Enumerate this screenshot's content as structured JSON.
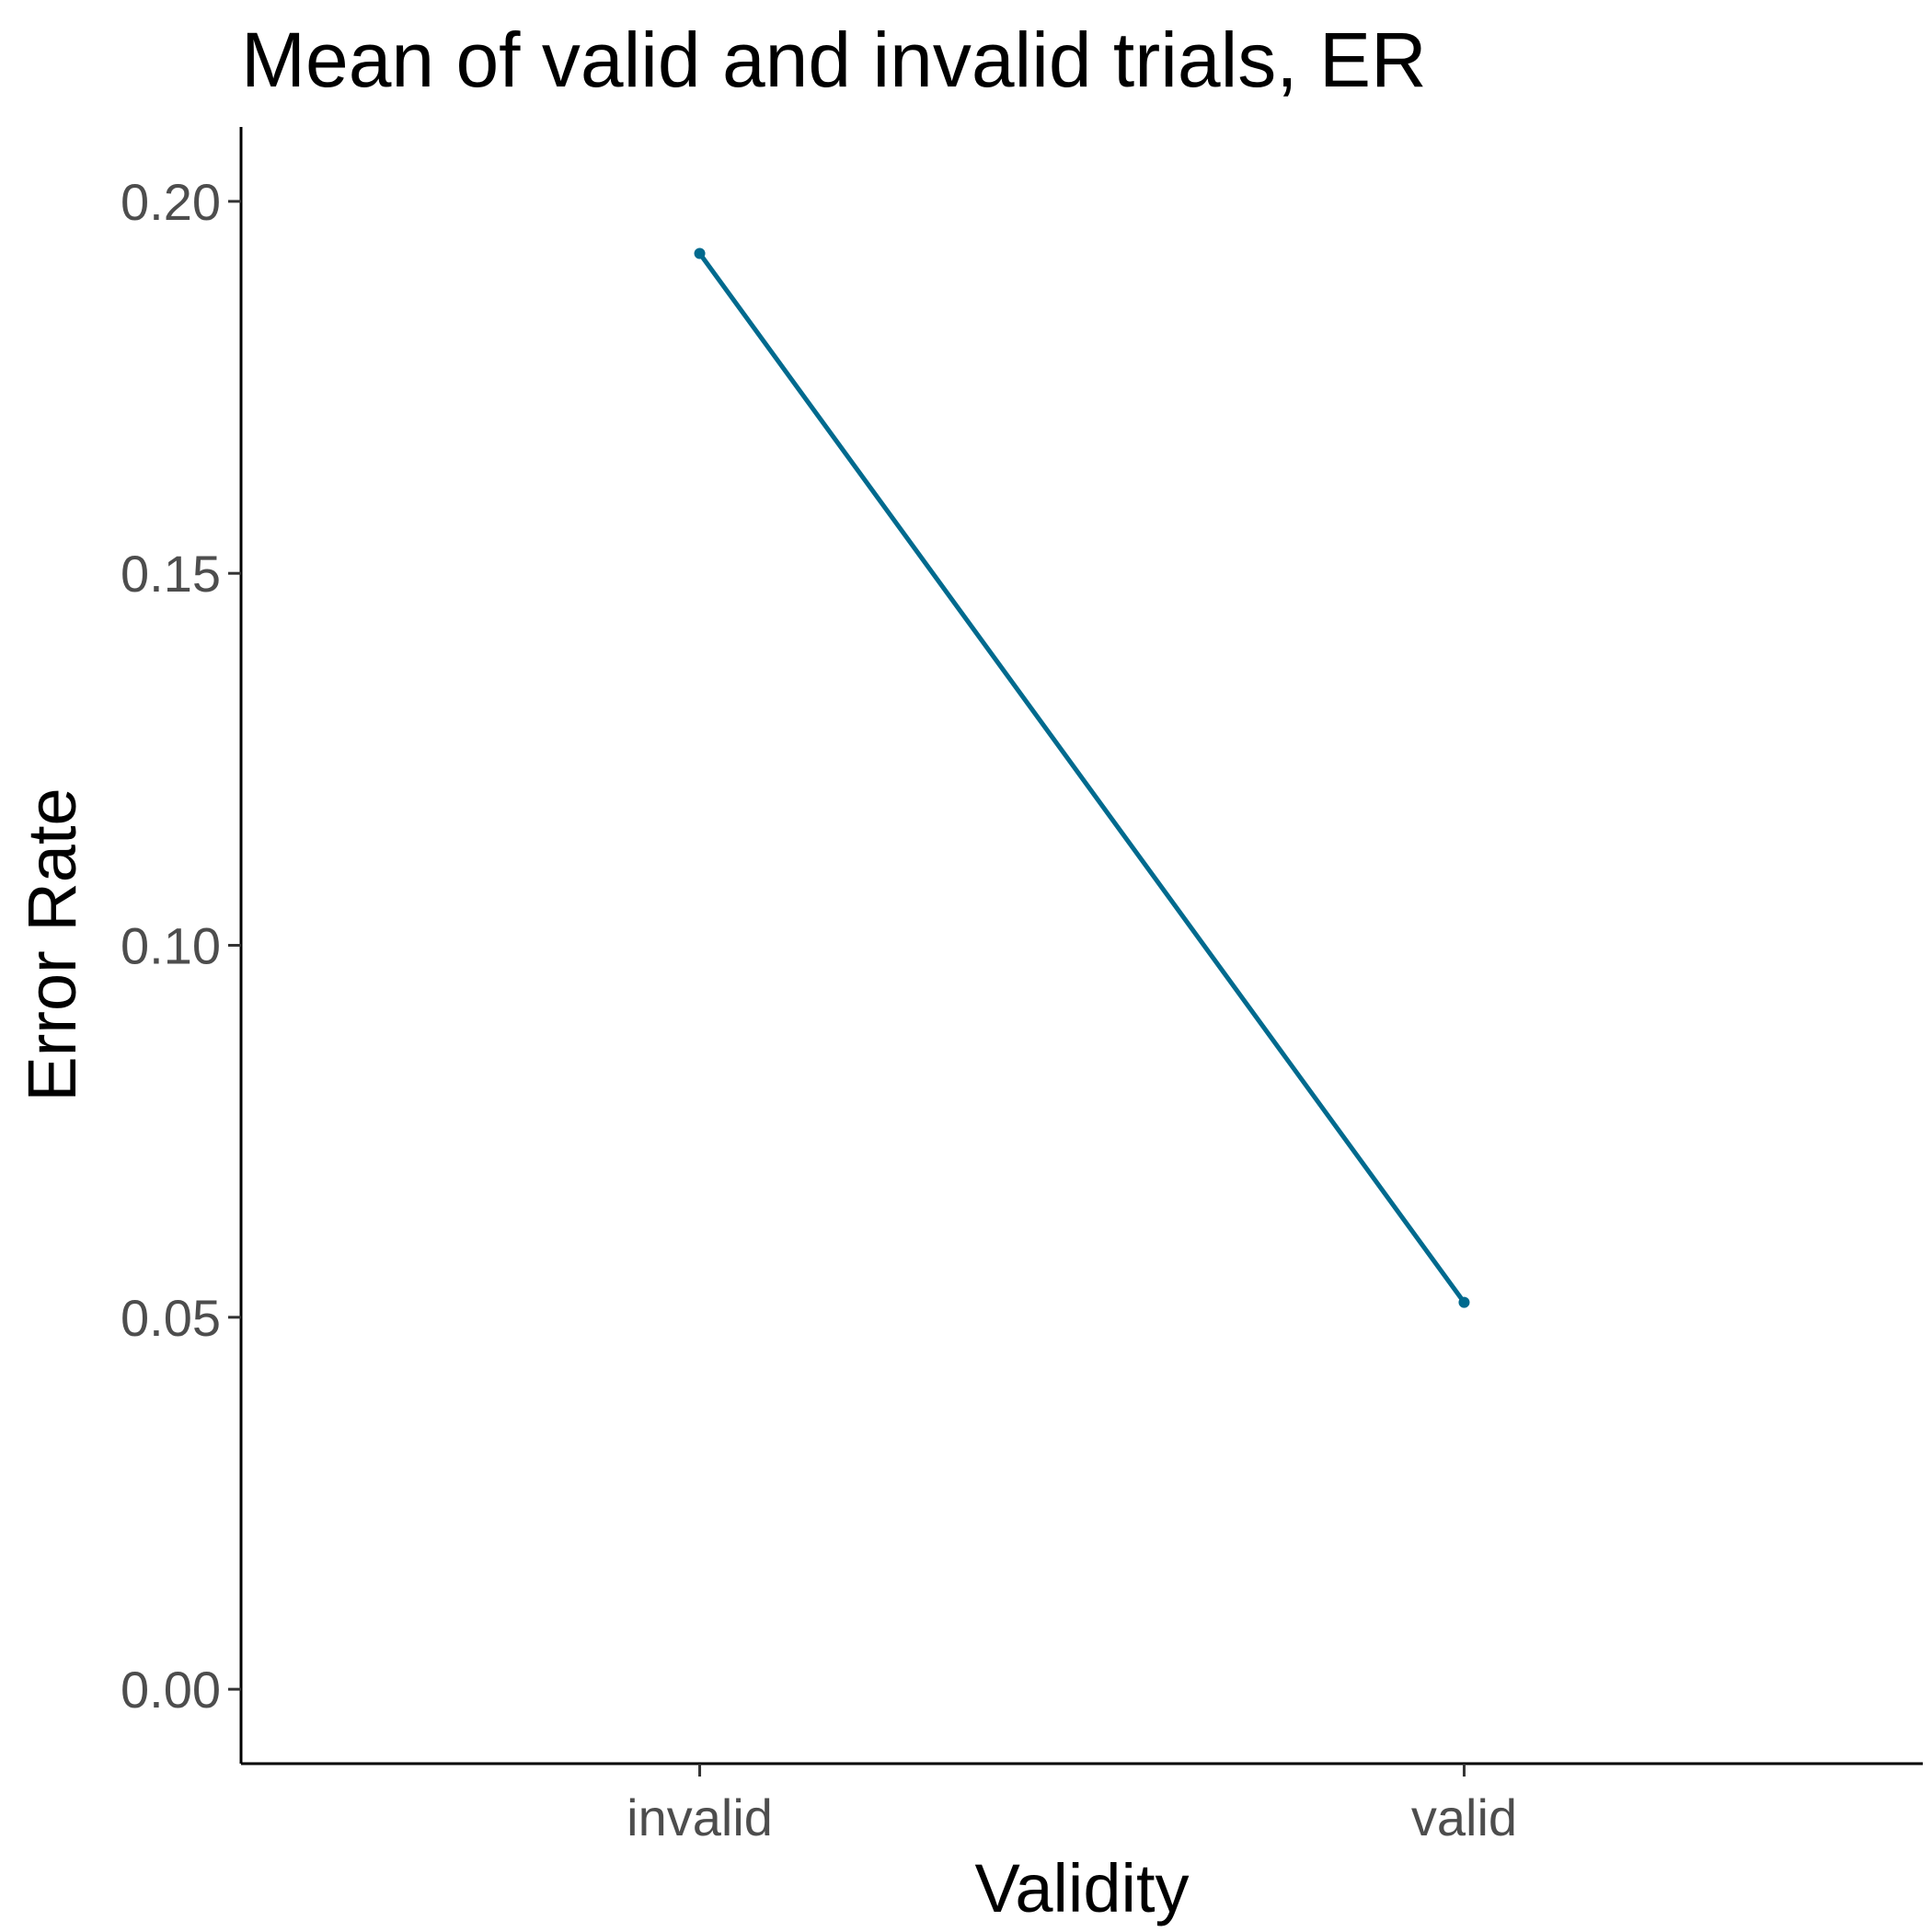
{
  "chart_data": {
    "type": "line",
    "title": "Mean of valid and invalid trials, ER",
    "xlabel": "Validity",
    "ylabel": "Error Rate",
    "categories": [
      "invalid",
      "valid"
    ],
    "series": [
      {
        "values": [
          0.193,
          0.052
        ],
        "color": "#006a8e"
      }
    ],
    "ylim": [
      -0.01,
      0.21
    ],
    "yticks": [
      0.0,
      0.05,
      0.1,
      0.15,
      0.2
    ],
    "ytick_labels": [
      "0.00",
      "0.05",
      "0.10",
      "0.15",
      "0.20"
    ],
    "grid": false,
    "legend": "none"
  }
}
